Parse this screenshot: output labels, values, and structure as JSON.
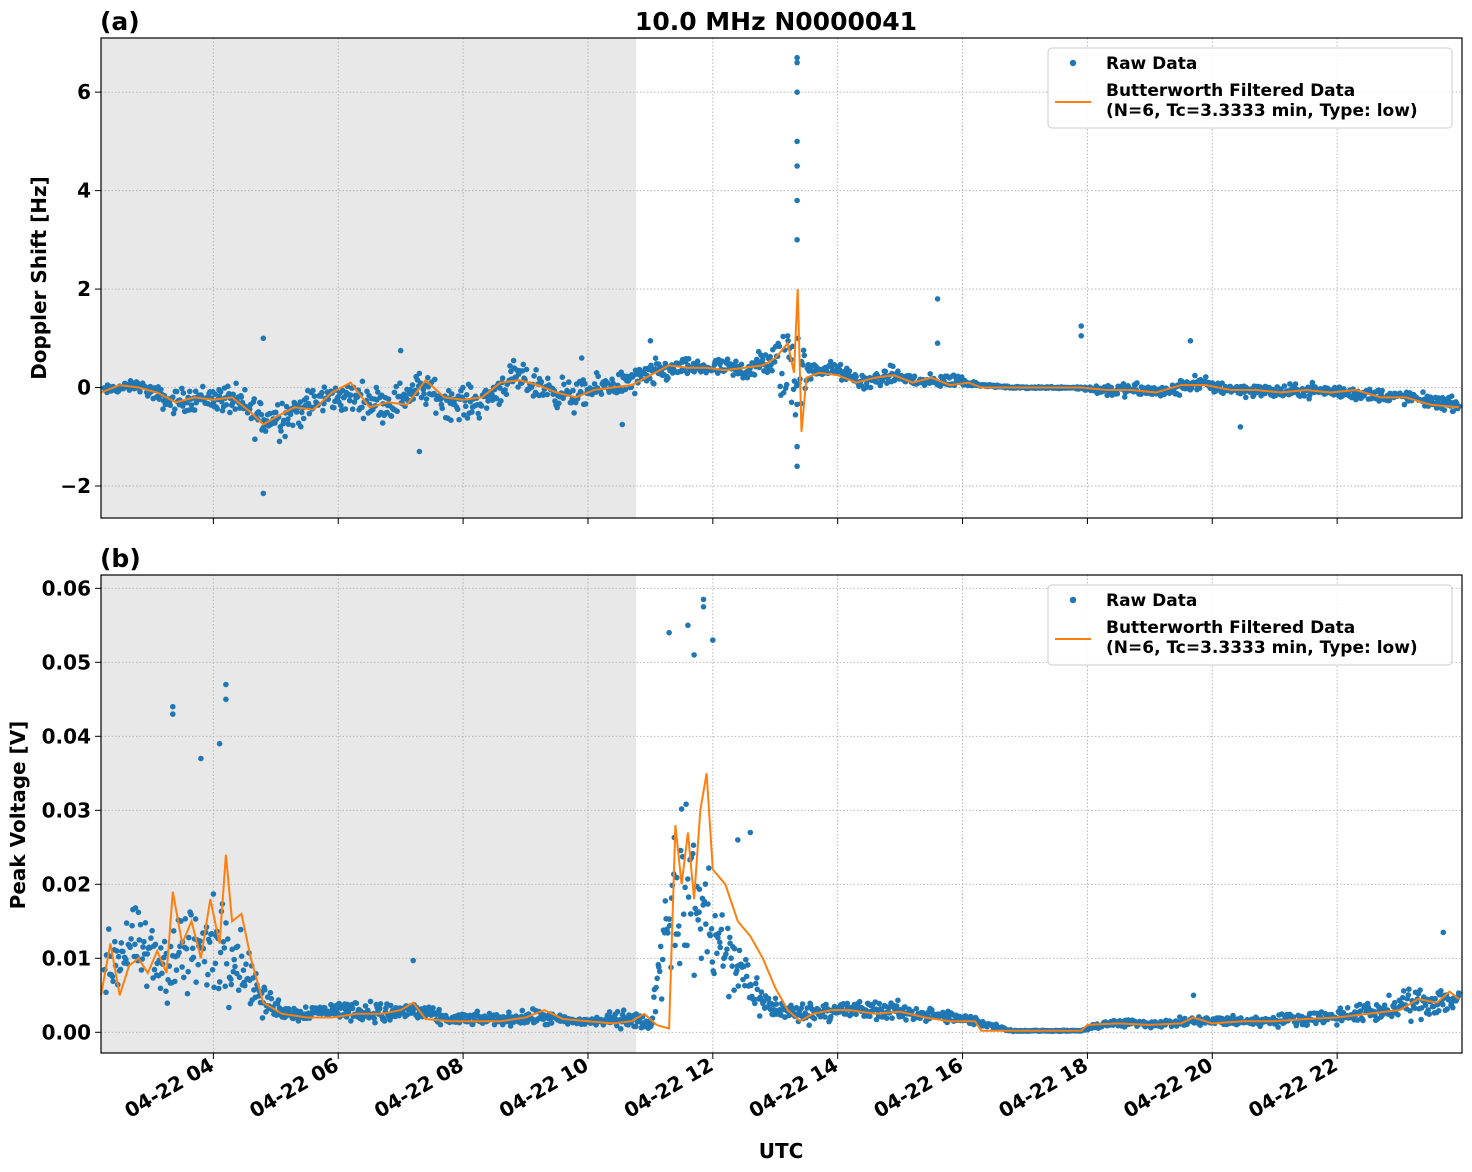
{
  "figure": {
    "title": "10.0 MHz N0000041",
    "xlabel": "UTC"
  },
  "chart_data": [
    {
      "panel_label": "(a)",
      "type": "scatter",
      "title": "10.0 MHz N0000041",
      "ylabel": "Doppler Shift [Hz]",
      "xlabel": "",
      "x_unit": "UTC hour of 04-22",
      "xlim": [
        2.2,
        24.0
      ],
      "ylim": [
        -2.65,
        7.1
      ],
      "yticks": [
        -2,
        0,
        2,
        4,
        6
      ],
      "ytick_labels": [
        "−2",
        "0",
        "2",
        "4",
        "6"
      ],
      "grid": true,
      "legend_position": "top-right",
      "shaded_interval": [
        2.2,
        10.77
      ],
      "series": [
        {
          "name": "Raw Data",
          "kind": "scatter",
          "color": "#1f77b4",
          "x": [
            2.3,
            2.8,
            3.3,
            3.8,
            4.3,
            4.8,
            5.3,
            5.8,
            6.3,
            6.8,
            7.3,
            7.8,
            8.3,
            8.8,
            9.3,
            9.8,
            10.3,
            10.7,
            11.1,
            11.5,
            12.0,
            12.5,
            13.0,
            13.3,
            13.5,
            13.9,
            14.4,
            14.9,
            15.4,
            15.9,
            16.3,
            16.8,
            17.3,
            17.8,
            18.3,
            18.8,
            19.3,
            19.7,
            20.1,
            20.6,
            21.1,
            21.6,
            22.1,
            22.6,
            23.1,
            23.6,
            23.95
          ],
          "center": [
            -0.05,
            0.05,
            -0.3,
            -0.2,
            -0.25,
            -0.65,
            -0.5,
            -0.2,
            -0.2,
            -0.35,
            0.0,
            -0.3,
            -0.3,
            0.2,
            0.0,
            -0.2,
            0.05,
            0.1,
            0.3,
            0.4,
            0.4,
            0.35,
            0.55,
            0.4,
            0.3,
            0.4,
            0.1,
            0.25,
            0.1,
            0.15,
            0.05,
            0.0,
            0.0,
            0.0,
            -0.05,
            -0.05,
            -0.1,
            0.1,
            0.0,
            -0.05,
            -0.1,
            -0.05,
            -0.1,
            -0.15,
            -0.2,
            -0.3,
            -0.35
          ],
          "spread": [
            0.15,
            0.15,
            0.35,
            0.35,
            0.45,
            0.7,
            0.55,
            0.4,
            0.45,
            0.5,
            0.45,
            0.5,
            0.45,
            0.45,
            0.45,
            0.45,
            0.35,
            0.4,
            0.4,
            0.25,
            0.25,
            0.35,
            0.5,
            2.5,
            0.3,
            0.2,
            0.25,
            0.25,
            0.2,
            0.2,
            0.03,
            0.03,
            0.03,
            0.03,
            0.2,
            0.2,
            0.2,
            0.25,
            0.2,
            0.2,
            0.2,
            0.2,
            0.2,
            0.2,
            0.2,
            0.2,
            0.2
          ],
          "outliers": [
            [
              4.8,
              1.0
            ],
            [
              4.8,
              -2.15
            ],
            [
              13.35,
              6.7
            ],
            [
              13.35,
              6.6
            ],
            [
              13.35,
              6.0
            ],
            [
              13.35,
              5.0
            ],
            [
              13.35,
              4.5
            ],
            [
              13.35,
              3.8
            ],
            [
              13.35,
              3.0
            ],
            [
              13.35,
              -1.6
            ],
            [
              13.35,
              -1.2
            ],
            [
              15.6,
              1.8
            ],
            [
              15.6,
              0.9
            ],
            [
              17.9,
              1.25
            ],
            [
              17.9,
              1.05
            ],
            [
              19.65,
              0.95
            ],
            [
              20.45,
              -0.8
            ],
            [
              10.55,
              -0.75
            ],
            [
              7.0,
              0.75
            ],
            [
              7.3,
              -1.3
            ],
            [
              9.9,
              0.6
            ],
            [
              11.0,
              0.95
            ]
          ]
        },
        {
          "name": "Butterworth Filtered Data\n(N=6, Tc=3.3333 min, Type: low)",
          "kind": "line",
          "color": "#ff7f0e",
          "x": [
            2.2,
            2.5,
            2.8,
            3.1,
            3.4,
            3.7,
            4.0,
            4.3,
            4.6,
            4.8,
            5.0,
            5.3,
            5.6,
            5.9,
            6.2,
            6.5,
            6.8,
            7.1,
            7.4,
            7.7,
            8.0,
            8.3,
            8.6,
            8.9,
            9.2,
            9.5,
            9.8,
            10.1,
            10.4,
            10.7,
            11.0,
            11.3,
            11.6,
            11.9,
            12.2,
            12.5,
            12.8,
            13.0,
            13.2,
            13.3,
            13.36,
            13.42,
            13.5,
            13.7,
            14.0,
            14.3,
            14.6,
            14.9,
            15.2,
            15.5,
            15.8,
            16.1,
            16.3,
            16.8,
            17.3,
            17.9,
            18.3,
            18.7,
            19.1,
            19.5,
            19.9,
            20.3,
            20.7,
            21.1,
            21.5,
            21.9,
            22.3,
            22.7,
            23.1,
            23.5,
            23.95
          ],
          "y": [
            -0.1,
            0.05,
            0.0,
            -0.1,
            -0.3,
            -0.2,
            -0.25,
            -0.2,
            -0.5,
            -0.75,
            -0.6,
            -0.4,
            -0.45,
            -0.1,
            0.1,
            -0.4,
            -0.3,
            -0.35,
            0.15,
            -0.2,
            -0.25,
            -0.2,
            0.1,
            0.15,
            0.05,
            -0.1,
            -0.2,
            -0.05,
            0.0,
            0.05,
            0.25,
            0.45,
            0.4,
            0.4,
            0.35,
            0.4,
            0.45,
            0.6,
            0.9,
            0.3,
            2.0,
            -0.9,
            0.2,
            0.3,
            0.25,
            0.1,
            0.2,
            0.25,
            0.1,
            0.2,
            0.05,
            0.1,
            0.0,
            0.0,
            0.0,
            0.0,
            -0.05,
            -0.05,
            -0.1,
            0.05,
            0.05,
            -0.05,
            -0.05,
            -0.1,
            -0.05,
            -0.1,
            -0.05,
            -0.2,
            -0.2,
            -0.35,
            -0.4
          ]
        }
      ]
    },
    {
      "panel_label": "(b)",
      "type": "scatter",
      "title": "",
      "ylabel": "Peak Voltage [V]",
      "xlabel": "UTC",
      "x_unit": "UTC hour of 04-22",
      "xlim": [
        2.2,
        24.0
      ],
      "ylim": [
        -0.0028,
        0.0618
      ],
      "yticks": [
        0.0,
        0.01,
        0.02,
        0.03,
        0.04,
        0.05,
        0.06
      ],
      "ytick_labels": [
        "0.00",
        "0.01",
        "0.02",
        "0.03",
        "0.04",
        "0.05",
        "0.06"
      ],
      "xticks": [
        4,
        6,
        8,
        10,
        12,
        14,
        16,
        18,
        20,
        22
      ],
      "xtick_labels": [
        "04-22 04",
        "04-22 06",
        "04-22 08",
        "04-22 10",
        "04-22 12",
        "04-22 14",
        "04-22 16",
        "04-22 18",
        "04-22 20",
        "04-22 22"
      ],
      "grid": true,
      "legend_position": "top-right",
      "shaded_interval": [
        2.2,
        10.77
      ],
      "series": [
        {
          "name": "Raw Data",
          "kind": "scatter",
          "color": "#1f77b4",
          "x": [
            2.3,
            2.7,
            3.1,
            3.5,
            3.9,
            4.2,
            4.5,
            4.8,
            5.3,
            5.8,
            6.3,
            6.8,
            7.2,
            7.7,
            8.2,
            8.7,
            9.2,
            9.7,
            10.2,
            10.6,
            11.0,
            11.3,
            11.6,
            11.9,
            12.2,
            12.5,
            12.8,
            13.1,
            13.4,
            13.8,
            14.3,
            14.8,
            15.3,
            15.8,
            16.2,
            16.8,
            17.4,
            17.9,
            18.3,
            18.8,
            19.3,
            19.8,
            20.3,
            20.8,
            21.3,
            21.8,
            22.3,
            22.8,
            23.3,
            23.95
          ],
          "center": [
            0.009,
            0.012,
            0.009,
            0.011,
            0.011,
            0.012,
            0.009,
            0.004,
            0.0025,
            0.003,
            0.003,
            0.0025,
            0.003,
            0.0018,
            0.0018,
            0.0018,
            0.002,
            0.0015,
            0.0015,
            0.002,
            0.001,
            0.017,
            0.02,
            0.015,
            0.01,
            0.008,
            0.004,
            0.003,
            0.0025,
            0.003,
            0.003,
            0.003,
            0.0025,
            0.002,
            0.0015,
            0.0002,
            0.0002,
            0.0002,
            0.0012,
            0.0012,
            0.0012,
            0.0015,
            0.0015,
            0.0015,
            0.0018,
            0.002,
            0.0025,
            0.003,
            0.004,
            0.0045
          ],
          "spread": [
            0.006,
            0.007,
            0.007,
            0.01,
            0.01,
            0.01,
            0.006,
            0.003,
            0.0015,
            0.0015,
            0.002,
            0.002,
            0.002,
            0.0012,
            0.0012,
            0.0012,
            0.0015,
            0.001,
            0.001,
            0.002,
            0.0008,
            0.014,
            0.016,
            0.013,
            0.009,
            0.006,
            0.003,
            0.002,
            0.002,
            0.002,
            0.002,
            0.002,
            0.0015,
            0.0012,
            0.001,
            0.0001,
            0.0001,
            0.0001,
            0.0008,
            0.0008,
            0.0008,
            0.001,
            0.001,
            0.001,
            0.0012,
            0.0015,
            0.0018,
            0.0022,
            0.003,
            0.003
          ],
          "outliers": [
            [
              3.35,
              0.044
            ],
            [
              3.35,
              0.043
            ],
            [
              4.2,
              0.047
            ],
            [
              4.2,
              0.045
            ],
            [
              4.1,
              0.039
            ],
            [
              3.8,
              0.037
            ],
            [
              11.85,
              0.0585
            ],
            [
              11.85,
              0.0575
            ],
            [
              11.6,
              0.055
            ],
            [
              11.3,
              0.054
            ],
            [
              12.0,
              0.053
            ],
            [
              11.7,
              0.051
            ],
            [
              12.6,
              0.027
            ],
            [
              12.4,
              0.026
            ],
            [
              7.2,
              0.0097
            ],
            [
              19.7,
              0.005
            ],
            [
              23.7,
              0.0135
            ]
          ]
        },
        {
          "name": "Butterworth Filtered Data\n(N=6, Tc=3.3333 min, Type: low)",
          "kind": "line",
          "color": "#ff7f0e",
          "x": [
            2.2,
            2.35,
            2.5,
            2.65,
            2.8,
            2.95,
            3.1,
            3.25,
            3.35,
            3.5,
            3.65,
            3.8,
            3.95,
            4.1,
            4.2,
            4.3,
            4.45,
            4.6,
            4.8,
            5.1,
            5.5,
            5.9,
            6.3,
            6.7,
            7.0,
            7.2,
            7.4,
            7.8,
            8.2,
            8.6,
            9.0,
            9.3,
            9.6,
            10.0,
            10.4,
            10.7,
            10.9,
            11.1,
            11.3,
            11.4,
            11.5,
            11.6,
            11.7,
            11.8,
            11.9,
            12.0,
            12.2,
            12.4,
            12.6,
            12.8,
            13.0,
            13.2,
            13.4,
            13.6,
            13.9,
            14.2,
            14.6,
            15.0,
            15.4,
            15.8,
            16.2,
            16.3,
            16.8,
            17.3,
            17.9,
            18.0,
            18.5,
            19.0,
            19.5,
            19.7,
            20.0,
            20.5,
            21.0,
            21.5,
            22.0,
            22.5,
            23.0,
            23.3,
            23.6,
            23.8,
            23.95
          ],
          "y": [
            0.005,
            0.012,
            0.005,
            0.009,
            0.01,
            0.008,
            0.011,
            0.008,
            0.019,
            0.012,
            0.015,
            0.01,
            0.018,
            0.012,
            0.024,
            0.015,
            0.016,
            0.01,
            0.004,
            0.0025,
            0.002,
            0.002,
            0.0025,
            0.0025,
            0.003,
            0.004,
            0.0018,
            0.0015,
            0.0015,
            0.0015,
            0.002,
            0.003,
            0.0018,
            0.0015,
            0.0012,
            0.0015,
            0.0025,
            0.001,
            0.0005,
            0.028,
            0.02,
            0.027,
            0.018,
            0.03,
            0.035,
            0.022,
            0.02,
            0.015,
            0.013,
            0.01,
            0.006,
            0.003,
            0.0015,
            0.0025,
            0.003,
            0.003,
            0.0025,
            0.0028,
            0.002,
            0.0015,
            0.0015,
            0.0002,
            0.0002,
            0.0002,
            0.0002,
            0.001,
            0.0012,
            0.001,
            0.0012,
            0.002,
            0.0012,
            0.0015,
            0.0015,
            0.0018,
            0.002,
            0.0025,
            0.003,
            0.0045,
            0.004,
            0.0055,
            0.0045
          ]
        }
      ]
    }
  ]
}
